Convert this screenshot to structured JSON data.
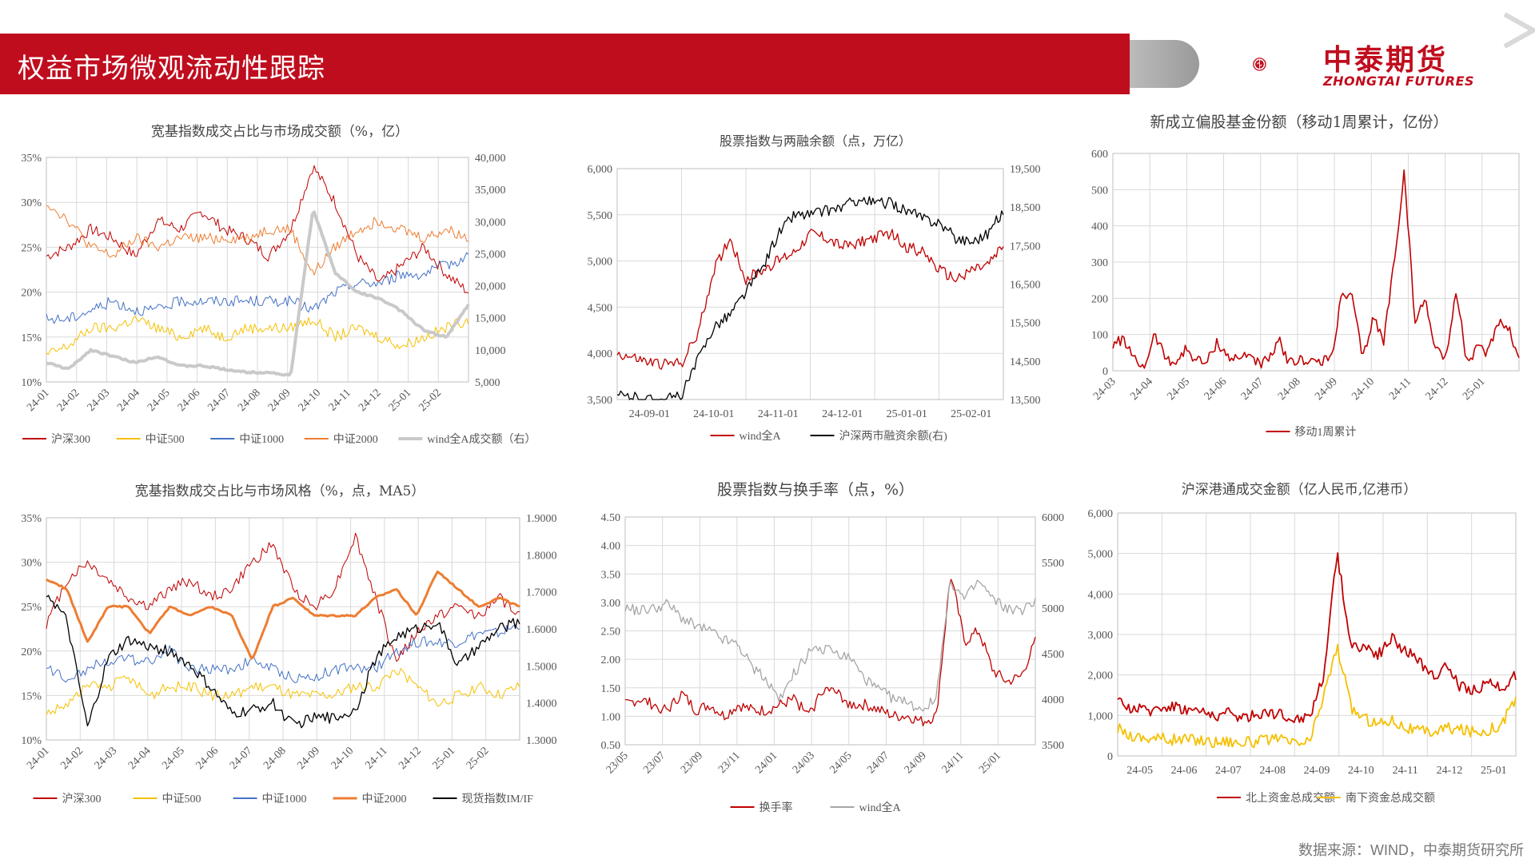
{
  "header": {
    "title": "权益市场微观流动性跟踪"
  },
  "logo": {
    "cn": "中泰期货",
    "en": "ZHONGTAI FUTURES"
  },
  "source": "数据来源：WIND，中泰期货研究所",
  "colors": {
    "brand": "#c00d1e",
    "red": "#c00000",
    "yellow": "#f5c000",
    "blue": "#4472c4",
    "orange": "#ed7d31",
    "gray": "#c9c9c9",
    "black": "#000000"
  },
  "charts": [
    {
      "type": "line",
      "title": "宽基指数成交占比与市场成交额（%，亿）",
      "xticks": [
        "24-01",
        "24-02",
        "24-03",
        "24-04",
        "24-05",
        "24-06",
        "24-07",
        "24-08",
        "24-09",
        "24-10",
        "24-11",
        "24-12",
        "25-01",
        "25-02"
      ],
      "yleft": {
        "ticks": [
          "35%",
          "30%",
          "25%",
          "20%",
          "15%",
          "10%"
        ],
        "range": [
          10,
          35
        ]
      },
      "yright": {
        "ticks": [
          "40,000",
          "35,000",
          "30,000",
          "25,000",
          "20,000",
          "15,000",
          "10,000",
          "5,000"
        ],
        "range": [
          5000,
          40000
        ]
      },
      "series": [
        {
          "name": "沪深300",
          "color": "#c00000",
          "width": 1,
          "axis": "left",
          "base": [
            24,
            25,
            27,
            26,
            24,
            28,
            27,
            29,
            27,
            26,
            24,
            27,
            34,
            30,
            24,
            21,
            23,
            25,
            22,
            20
          ]
        },
        {
          "name": "中证500",
          "color": "#f5c000",
          "width": 1,
          "axis": "left",
          "base": [
            13,
            14,
            16,
            16,
            17,
            16,
            15,
            16,
            15,
            16,
            16,
            16,
            17,
            15,
            16,
            15,
            14,
            15,
            16,
            17
          ]
        },
        {
          "name": "中证1000",
          "color": "#4472c4",
          "width": 1,
          "axis": "left",
          "base": [
            17,
            17,
            18,
            19,
            18,
            18,
            19,
            19,
            19,
            19,
            19,
            19,
            18,
            20,
            21,
            21,
            22,
            22,
            23,
            24
          ]
        },
        {
          "name": "中证2000",
          "color": "#ed7d31",
          "width": 1,
          "axis": "left",
          "base": [
            30,
            28,
            25,
            24,
            26,
            25,
            26,
            26,
            26,
            26,
            27,
            27,
            22,
            25,
            27,
            28,
            27,
            26,
            27,
            26
          ]
        },
        {
          "name": "wind全A成交额（右）",
          "color": "#c9c9c9",
          "width": 4,
          "axis": "right",
          "base": [
            8000,
            7000,
            10000,
            9000,
            8000,
            9000,
            7500,
            7500,
            7000,
            6500,
            6500,
            6000,
            32000,
            22000,
            19000,
            18000,
            16000,
            13000,
            12000,
            17000
          ],
          "spikeAt": 12
        }
      ]
    },
    {
      "type": "line",
      "title": "股票指数与两融余额（点，万亿）",
      "xticks": [
        "24-09-01",
        "24-10-01",
        "24-11-01",
        "24-12-01",
        "25-01-01",
        "25-02-01"
      ],
      "yleft": {
        "ticks": [
          "6,000",
          "5,500",
          "5,000",
          "4,500",
          "4,000",
          "3,500"
        ],
        "range": [
          3500,
          6000
        ]
      },
      "yright": {
        "ticks": [
          "19,500",
          "18,500",
          "17,500",
          "16,500",
          "15,500",
          "14,500",
          "13,500"
        ],
        "range": [
          13500,
          19500
        ]
      },
      "series": [
        {
          "name": "wind全A",
          "color": "#c00000",
          "width": 1.3,
          "axis": "left",
          "base": [
            4000,
            3950,
            3900,
            3880,
            3900,
            4200,
            4900,
            5250,
            4800,
            4900,
            5000,
            5100,
            5300,
            5250,
            5150,
            5200,
            5250,
            5300,
            5150,
            5100,
            4900,
            4800,
            4900,
            4950,
            5150
          ]
        },
        {
          "name": "沪深两市融资余额(右)",
          "color": "#000000",
          "width": 1.3,
          "axis": "right",
          "base": [
            13600,
            13550,
            13500,
            13500,
            13600,
            14500,
            15400,
            15700,
            16300,
            16900,
            17800,
            18300,
            18300,
            18400,
            18500,
            18700,
            18600,
            18600,
            18400,
            18200,
            18100,
            17700,
            17600,
            17800,
            18400
          ]
        }
      ]
    },
    {
      "type": "line",
      "title": "新成立偏股基金份额（移动1周累计，亿份）",
      "xticks": [
        "24-03",
        "24-04",
        "24-05",
        "24-06",
        "24-07",
        "24-08",
        "24-09",
        "24-10",
        "24-11",
        "24-12",
        "25-01"
      ],
      "yleft": {
        "ticks": [
          "600",
          "500",
          "400",
          "300",
          "200",
          "100",
          "0"
        ],
        "range": [
          0,
          600
        ]
      },
      "series": [
        {
          "name": "移动1周累计",
          "color": "#c00000",
          "width": 1.6,
          "axis": "left",
          "base": [
            70,
            90,
            30,
            10,
            100,
            40,
            20,
            60,
            30,
            20,
            80,
            40,
            30,
            50,
            20,
            30,
            80,
            20,
            30,
            30,
            20,
            40,
            210,
            200,
            30,
            150,
            80,
            300,
            550,
            130,
            200,
            60,
            40,
            220,
            20,
            60,
            50,
            140,
            120,
            30
          ]
        }
      ]
    },
    {
      "type": "line",
      "title": "宽基指数成交占比与市场风格（%，点，MA5）",
      "xticks": [
        "24-01",
        "24-02",
        "24-03",
        "24-04",
        "24-05",
        "24-06",
        "24-07",
        "24-08",
        "24-09",
        "24-10",
        "24-11",
        "24-12",
        "25-01",
        "25-02"
      ],
      "yleft": {
        "ticks": [
          "35%",
          "30%",
          "25%",
          "20%",
          "15%",
          "10%"
        ],
        "range": [
          10,
          35
        ]
      },
      "yright": {
        "ticks": [
          "1.9000",
          "1.8000",
          "1.7000",
          "1.6000",
          "1.5000",
          "1.4000",
          "1.3000"
        ],
        "range": [
          1.3,
          1.9
        ]
      },
      "series": [
        {
          "name": "沪深300",
          "color": "#c00000",
          "width": 1,
          "axis": "left",
          "base": [
            23,
            28,
            30,
            28,
            26,
            25,
            27,
            28,
            26,
            27,
            30,
            32,
            27,
            25,
            27,
            33,
            26,
            19,
            22,
            24,
            25,
            24,
            26,
            24
          ]
        },
        {
          "name": "中证500",
          "color": "#f5c000",
          "width": 1,
          "axis": "left",
          "base": [
            13,
            14,
            16,
            16,
            17,
            15,
            16,
            16,
            15,
            15,
            16,
            16,
            15,
            15,
            15,
            16,
            16,
            18,
            16,
            14,
            15,
            16,
            15,
            16
          ]
        },
        {
          "name": "中证1000",
          "color": "#4472c4",
          "width": 1,
          "axis": "left",
          "base": [
            18,
            17,
            18,
            19,
            19,
            19,
            20,
            18,
            18,
            18,
            19,
            18,
            17,
            17,
            18,
            18,
            18,
            20,
            21,
            21,
            21,
            22,
            22,
            23
          ]
        },
        {
          "name": "中证2000",
          "color": "#ed7d31",
          "width": 3,
          "axis": "left",
          "base": [
            28,
            27,
            21,
            25,
            25,
            22,
            25,
            24,
            25,
            24,
            19,
            25,
            26,
            24,
            24,
            24,
            26,
            27,
            24,
            29,
            27,
            25,
            26,
            25
          ]
        },
        {
          "name": "现货指数IM/IF",
          "color": "#000000",
          "width": 1.3,
          "axis": "right",
          "base": [
            1.7,
            1.62,
            1.33,
            1.52,
            1.57,
            1.55,
            1.54,
            1.5,
            1.44,
            1.37,
            1.38,
            1.4,
            1.34,
            1.36,
            1.36,
            1.38,
            1.52,
            1.58,
            1.6,
            1.62,
            1.5,
            1.55,
            1.6,
            1.62
          ]
        }
      ]
    },
    {
      "type": "line",
      "title": "股票指数与换手率（点，%）",
      "xticks": [
        "23/05",
        "23/07",
        "23/09",
        "23/11",
        "24/01",
        "24/03",
        "24/05",
        "24/07",
        "24/09",
        "24/11",
        "25/01"
      ],
      "yleft": {
        "ticks": [
          "4.50",
          "4.00",
          "3.50",
          "3.00",
          "2.50",
          "2.00",
          "1.50",
          "1.00",
          "0.50"
        ],
        "range": [
          0.5,
          4.5
        ]
      },
      "yright": {
        "ticks": [
          "6000",
          "5500",
          "5000",
          "4500",
          "4000",
          "3500"
        ],
        "range": [
          3500,
          6000
        ]
      },
      "series": [
        {
          "name": "换手率",
          "color": "#c00000",
          "width": 1.3,
          "axis": "left",
          "base": [
            1.2,
            1.3,
            1.2,
            1.1,
            1.4,
            1.1,
            1.2,
            1.0,
            1.2,
            1.1,
            1.1,
            1.2,
            1.3,
            1.0,
            1.5,
            1.4,
            1.2,
            1.2,
            1.1,
            1.0,
            1.0,
            0.9,
            1.0,
            3.5,
            2.3,
            2.5,
            1.8,
            1.6,
            1.7,
            2.3
          ]
        },
        {
          "name": "wind全A",
          "color": "#a6a6a6",
          "width": 1.3,
          "axis": "right",
          "base": [
            5000,
            4980,
            5000,
            5050,
            4900,
            4800,
            4750,
            4650,
            4600,
            4350,
            4200,
            4000,
            4300,
            4500,
            4550,
            4500,
            4450,
            4200,
            4100,
            4000,
            3950,
            3900,
            4000,
            5300,
            5100,
            5300,
            5100,
            5000,
            4950,
            5100
          ]
        }
      ]
    },
    {
      "type": "line",
      "title": "沪深港通成交金额（亿人民币,亿港币）",
      "xticks": [
        "24-05",
        "24-06",
        "24-07",
        "24-08",
        "24-09",
        "24-10",
        "24-11",
        "24-12",
        "25-01"
      ],
      "yleft": {
        "ticks": [
          "6,000",
          "5,000",
          "4,000",
          "3,000",
          "2,000",
          "1,000",
          "0"
        ],
        "range": [
          0,
          6000
        ]
      },
      "series": [
        {
          "name": "北上资金总成交额",
          "color": "#c00000",
          "width": 1.8,
          "axis": "left",
          "base": [
            1300,
            1200,
            1100,
            1200,
            1250,
            1150,
            1100,
            1000,
            1050,
            950,
            1000,
            1100,
            1000,
            900,
            1000,
            2000,
            5000,
            2700,
            2700,
            2500,
            2900,
            2600,
            2300,
            2000,
            2200,
            1700,
            1600,
            1800,
            1700,
            2000
          ]
        },
        {
          "name": "南下资金总成交额",
          "color": "#f5c000",
          "width": 1.8,
          "axis": "left",
          "base": [
            700,
            500,
            450,
            450,
            400,
            420,
            400,
            350,
            380,
            330,
            350,
            400,
            380,
            300,
            350,
            1500,
            2700,
            1200,
            900,
            800,
            900,
            700,
            600,
            600,
            700,
            650,
            600,
            650,
            800,
            1400
          ]
        }
      ]
    }
  ]
}
